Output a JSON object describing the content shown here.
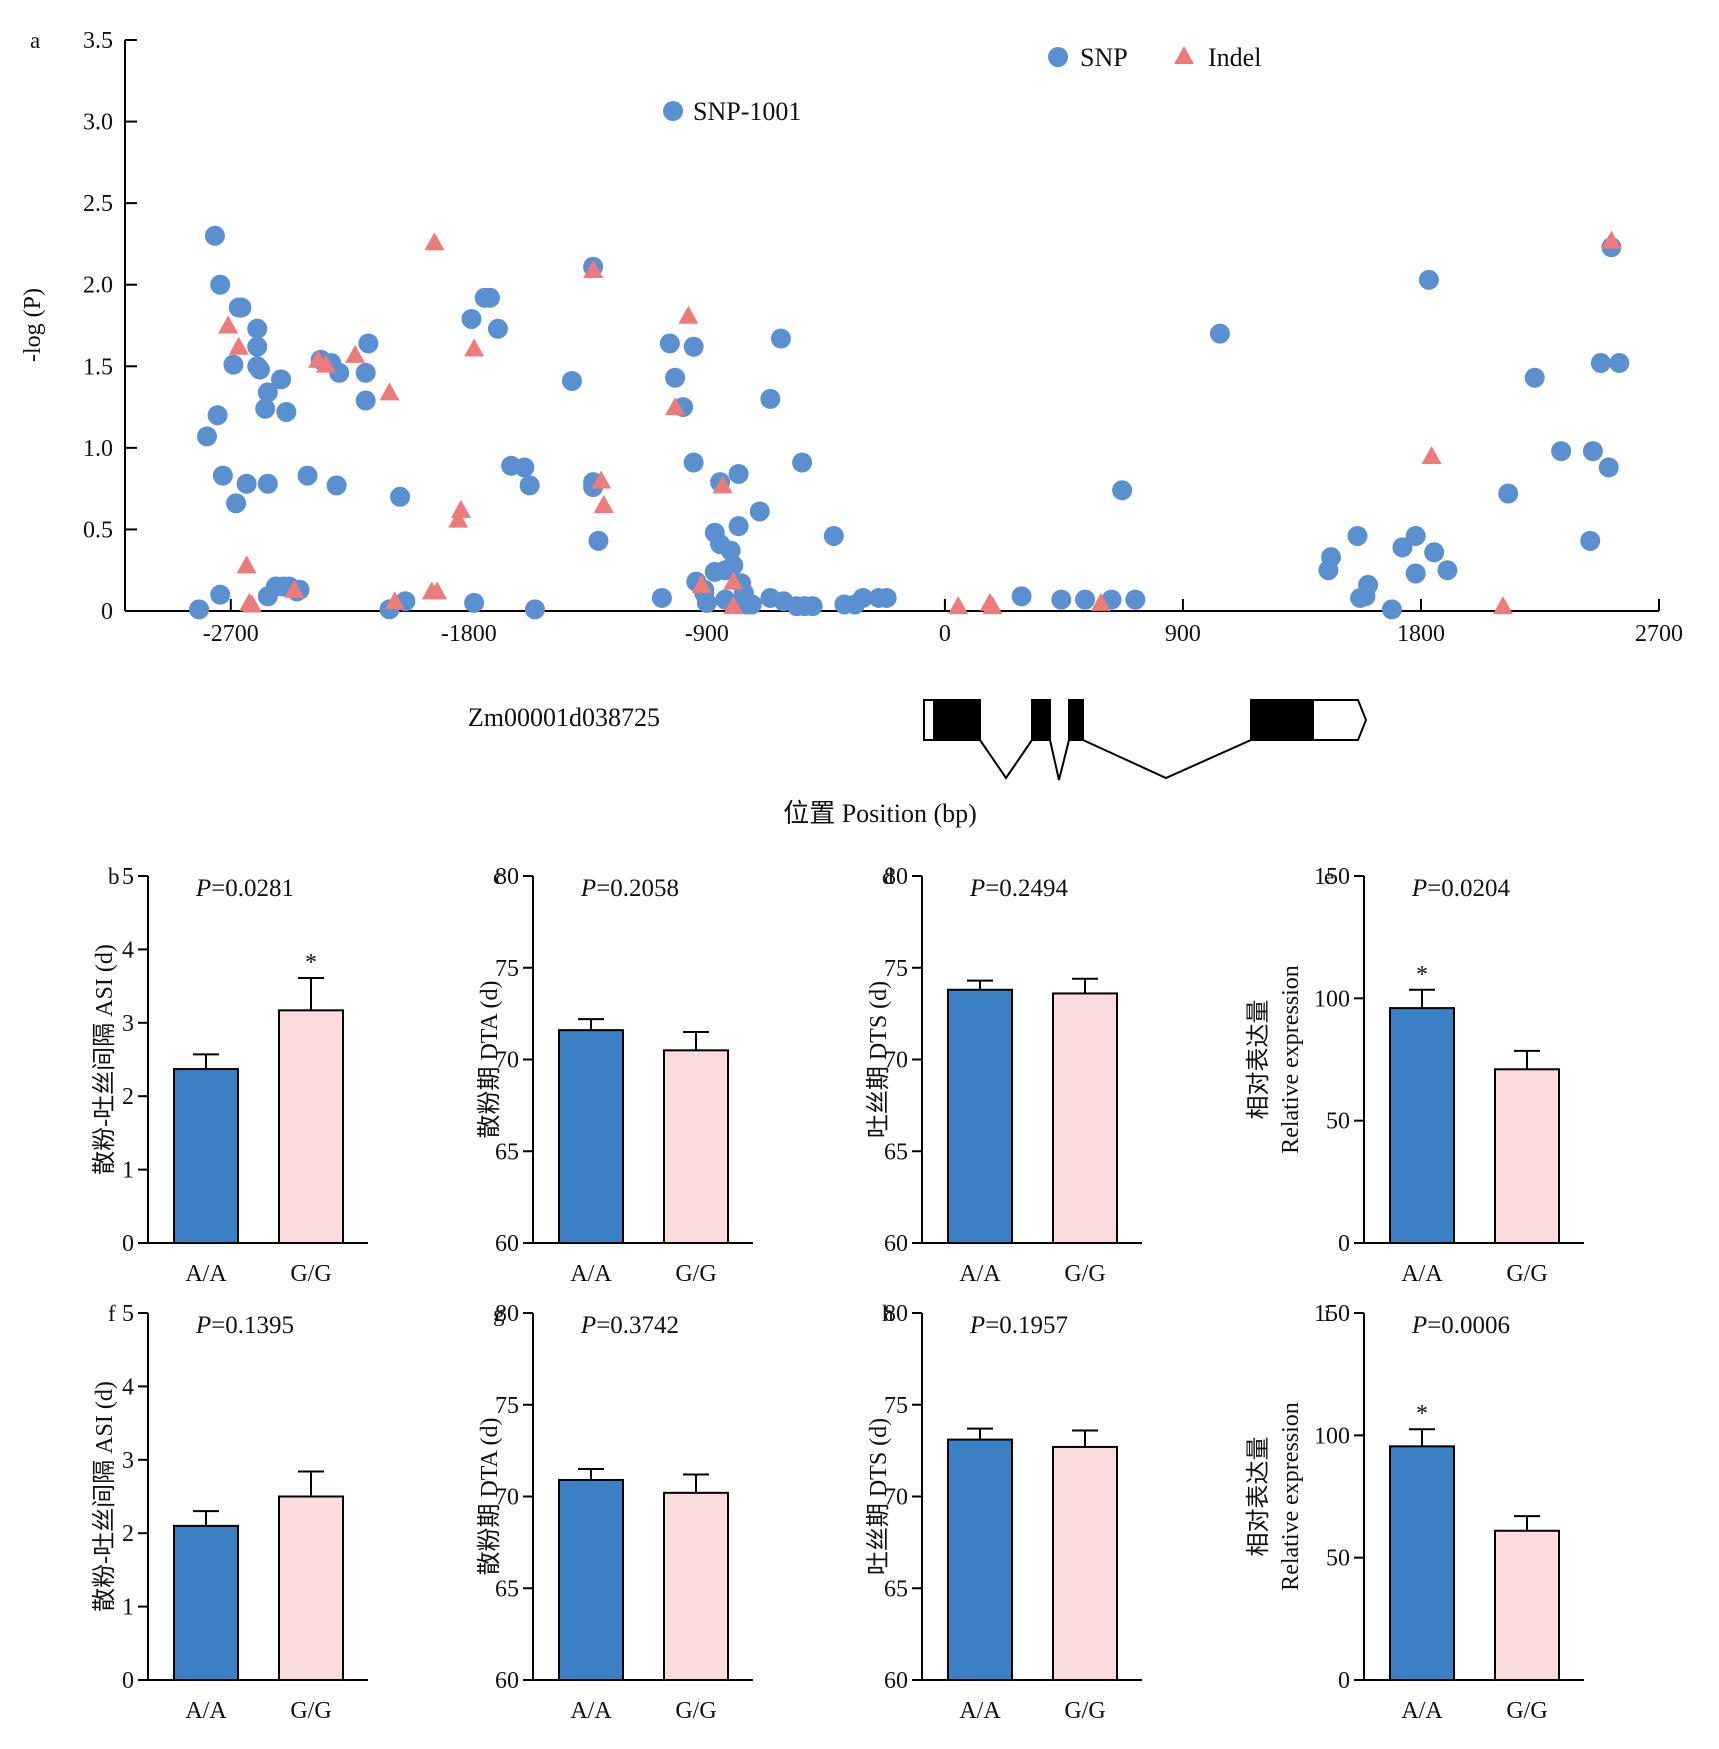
{
  "colors": {
    "snp": "#5a90cf",
    "indel": "#ee7b7b",
    "aa_bar": "#3a80c4",
    "gg_bar": "#fadcdc"
  },
  "chart_data": [
    {
      "panel": "a",
      "type": "scatter",
      "xlabel": "位置 Position (bp)",
      "ylabel": "-log (P)",
      "xlim": [
        -3100,
        2700
      ],
      "ylim": [
        0,
        3.5
      ],
      "xticks": [
        "-2700",
        "-1800",
        "-900",
        "0",
        "900",
        "1800",
        "2700"
      ],
      "yticks": [
        "0",
        "0.5",
        "1.0",
        "1.5",
        "2.0",
        "2.5",
        "3.0",
        "3.5"
      ],
      "legend_position": "top-right",
      "gene_label": "Zm00001d038725",
      "highlight": {
        "label": "SNP-1001",
        "series": "SNP"
      },
      "series": [
        {
          "name": "SNP",
          "marker": "circle",
          "points": [
            [
              -2820,
              0.01
            ],
            [
              -2790,
              1.07
            ],
            [
              -2760,
              2.3
            ],
            [
              -2750,
              1.2
            ],
            [
              -2740,
              2.0
            ],
            [
              -2740,
              0.1
            ],
            [
              -2730,
              0.83
            ],
            [
              -2690,
              1.51
            ],
            [
              -2680,
              0.66
            ],
            [
              -2670,
              1.86
            ],
            [
              -2660,
              1.86
            ],
            [
              -2640,
              0.78
            ],
            [
              -2600,
              1.73
            ],
            [
              -2600,
              1.62
            ],
            [
              -2600,
              1.5
            ],
            [
              -2590,
              1.48
            ],
            [
              -2570,
              1.24
            ],
            [
              -2560,
              1.34
            ],
            [
              -2560,
              0.78
            ],
            [
              -2560,
              0.09
            ],
            [
              -2530,
              0.15
            ],
            [
              -2510,
              1.42
            ],
            [
              -2500,
              0.15
            ],
            [
              -2490,
              1.22
            ],
            [
              -2480,
              0.15
            ],
            [
              -2450,
              0.12
            ],
            [
              -2440,
              0.13
            ],
            [
              -2410,
              0.83
            ],
            [
              -2360,
              1.54
            ],
            [
              -2320,
              1.52
            ],
            [
              -2300,
              0.77
            ],
            [
              -2290,
              1.46
            ],
            [
              -2190,
              1.29
            ],
            [
              -2190,
              1.46
            ],
            [
              -2180,
              1.64
            ],
            [
              -2100,
              0.01
            ],
            [
              -2060,
              0.7
            ],
            [
              -2040,
              0.06
            ],
            [
              -1790,
              1.79
            ],
            [
              -1780,
              0.05
            ],
            [
              -1740,
              1.92
            ],
            [
              -1720,
              1.92
            ],
            [
              -1690,
              1.73
            ],
            [
              -1640,
              0.89
            ],
            [
              -1590,
              0.88
            ],
            [
              -1570,
              0.77
            ],
            [
              -1550,
              0.01
            ],
            [
              -1410,
              1.41
            ],
            [
              -1330,
              2.11
            ],
            [
              -1330,
              0.79
            ],
            [
              -1330,
              0.76
            ],
            [
              -1310,
              0.43
            ],
            [
              -1070,
              0.08
            ],
            [
              -1040,
              1.64
            ],
            [
              -1020,
              1.43
            ],
            [
              -990,
              1.25
            ],
            [
              -950,
              1.62
            ],
            [
              -950,
              0.91
            ],
            [
              -940,
              0.18
            ],
            [
              -910,
              0.13
            ],
            [
              -910,
              0.11
            ],
            [
              -900,
              0.05
            ],
            [
              -870,
              0.48
            ],
            [
              -870,
              0.24
            ],
            [
              -850,
              0.79
            ],
            [
              -850,
              0.41
            ],
            [
              -830,
              0.25
            ],
            [
              -830,
              0.07
            ],
            [
              -810,
              0.37
            ],
            [
              -800,
              0.28
            ],
            [
              -780,
              0.84
            ],
            [
              -780,
              0.52
            ],
            [
              -770,
              0.17
            ],
            [
              -760,
              0.11
            ],
            [
              -760,
              0.06
            ],
            [
              -750,
              0.04
            ],
            [
              -730,
              0.04
            ],
            [
              -700,
              0.61
            ],
            [
              -660,
              1.3
            ],
            [
              -660,
              0.08
            ],
            [
              -620,
              1.67
            ],
            [
              -610,
              0.06
            ],
            [
              -560,
              0.03
            ],
            [
              -540,
              0.91
            ],
            [
              -530,
              0.03
            ],
            [
              -500,
              0.03
            ],
            [
              -420,
              0.46
            ],
            [
              -380,
              0.04
            ],
            [
              -340,
              0.04
            ],
            [
              -310,
              0.08
            ],
            [
              -250,
              0.08
            ],
            [
              -220,
              0.08
            ],
            [
              290,
              0.09
            ],
            [
              440,
              0.07
            ],
            [
              530,
              0.07
            ],
            [
              630,
              0.07
            ],
            [
              670,
              0.74
            ],
            [
              720,
              0.07
            ],
            [
              1040,
              1.7
            ],
            [
              1450,
              0.25
            ],
            [
              1460,
              0.33
            ],
            [
              1560,
              0.46
            ],
            [
              1570,
              0.08
            ],
            [
              1590,
              0.09
            ],
            [
              1600,
              0.16
            ],
            [
              1690,
              0.01
            ],
            [
              1730,
              0.39
            ],
            [
              1780,
              0.23
            ],
            [
              1780,
              0.46
            ],
            [
              1830,
              2.03
            ],
            [
              1850,
              0.36
            ],
            [
              1900,
              0.25
            ],
            [
              2130,
              0.72
            ],
            [
              2230,
              1.43
            ],
            [
              2330,
              0.98
            ],
            [
              2440,
              0.43
            ],
            [
              2450,
              0.98
            ],
            [
              2480,
              1.52
            ],
            [
              2510,
              0.88
            ],
            [
              2520,
              2.23
            ],
            [
              2550,
              1.52
            ]
          ]
        },
        {
          "name": "Indel",
          "marker": "triangle",
          "points": [
            [
              -2710,
              1.75
            ],
            [
              -2670,
              1.62
            ],
            [
              -2640,
              0.28
            ],
            [
              -2630,
              0.05
            ],
            [
              -2620,
              0.04
            ],
            [
              -2460,
              0.13
            ],
            [
              -2370,
              1.54
            ],
            [
              -2340,
              1.51
            ],
            [
              -2230,
              1.57
            ],
            [
              -2100,
              1.34
            ],
            [
              -2080,
              0.06
            ],
            [
              -1940,
              0.12
            ],
            [
              -1920,
              0.12
            ],
            [
              -1930,
              2.26
            ],
            [
              -1840,
              0.56
            ],
            [
              -1830,
              0.62
            ],
            [
              -1780,
              1.61
            ],
            [
              -1330,
              2.09
            ],
            [
              -1300,
              0.8
            ],
            [
              -1290,
              0.65
            ],
            [
              -1020,
              1.25
            ],
            [
              -970,
              1.81
            ],
            [
              -920,
              0.16
            ],
            [
              -840,
              0.77
            ],
            [
              -800,
              0.18
            ],
            [
              -800,
              0.03
            ],
            [
              50,
              0.03
            ],
            [
              170,
              0.05
            ],
            [
              180,
              0.03
            ],
            [
              590,
              0.05
            ],
            [
              1840,
              0.95
            ],
            [
              2110,
              0.03
            ],
            [
              2520,
              2.27
            ]
          ]
        }
      ]
    },
    {
      "panel": "b",
      "type": "bar",
      "ylabel": "散粉-吐丝间隔 ASI (d)",
      "p_text": "=0.0281",
      "ylim": [
        0,
        5
      ],
      "yticks": [
        "0",
        "1",
        "2",
        "3",
        "4",
        "5"
      ],
      "categories": [
        "A/A",
        "G/G"
      ],
      "values": [
        2.37,
        3.17
      ],
      "errors": [
        0.2,
        0.44
      ],
      "sig": [
        "",
        "*"
      ]
    },
    {
      "panel": "c",
      "type": "bar",
      "ylabel": "散粉期 DTA (d)",
      "p_text": "=0.2058",
      "ylim": [
        60,
        80
      ],
      "yticks": [
        "60",
        "65",
        "70",
        "75",
        "80"
      ],
      "categories": [
        "A/A",
        "G/G"
      ],
      "values": [
        71.6,
        70.5
      ],
      "errors": [
        0.6,
        1.0
      ],
      "sig": [
        "",
        ""
      ]
    },
    {
      "panel": "d",
      "type": "bar",
      "ylabel": "吐丝期 DTS (d)",
      "p_text": "=0.2494",
      "ylim": [
        60,
        80
      ],
      "yticks": [
        "60",
        "65",
        "70",
        "75",
        "80"
      ],
      "categories": [
        "A/A",
        "G/G"
      ],
      "values": [
        73.8,
        73.6
      ],
      "errors": [
        0.5,
        0.8
      ],
      "sig": [
        "",
        ""
      ]
    },
    {
      "panel": "e",
      "type": "bar",
      "ylabel": "相对表达量",
      "ylabel2": "Relative expression",
      "p_text": "=0.0204",
      "ylim": [
        0,
        150
      ],
      "yticks": [
        "0",
        "50",
        "100",
        "150"
      ],
      "categories": [
        "A/A",
        "G/G"
      ],
      "values": [
        96,
        71
      ],
      "errors": [
        7.5,
        7.5
      ],
      "sig": [
        "*",
        ""
      ]
    },
    {
      "panel": "f",
      "type": "bar",
      "ylabel": "散粉-吐丝间隔 ASI (d)",
      "p_text": "=0.1395",
      "ylim": [
        0,
        5
      ],
      "yticks": [
        "0",
        "1",
        "2",
        "3",
        "4",
        "5"
      ],
      "categories": [
        "A/A",
        "G/G"
      ],
      "values": [
        2.1,
        2.5
      ],
      "errors": [
        0.2,
        0.34
      ],
      "sig": [
        "",
        ""
      ]
    },
    {
      "panel": "g",
      "type": "bar",
      "ylabel": "散粉期 DTA (d)",
      "p_text": "=0.3742",
      "ylim": [
        60,
        80
      ],
      "yticks": [
        "60",
        "65",
        "70",
        "75",
        "80"
      ],
      "categories": [
        "A/A",
        "G/G"
      ],
      "values": [
        70.9,
        70.2
      ],
      "errors": [
        0.6,
        1.0
      ],
      "sig": [
        "",
        ""
      ]
    },
    {
      "panel": "h",
      "type": "bar",
      "ylabel": "吐丝期 DTS (d)",
      "p_text": "=0.1957",
      "ylim": [
        60,
        80
      ],
      "yticks": [
        "60",
        "65",
        "70",
        "75",
        "80"
      ],
      "categories": [
        "A/A",
        "G/G"
      ],
      "values": [
        73.1,
        72.7
      ],
      "errors": [
        0.6,
        0.9
      ],
      "sig": [
        "",
        ""
      ]
    },
    {
      "panel": "i",
      "type": "bar",
      "ylabel": "相对表达量",
      "ylabel2": "Relative expression",
      "p_text": "=0.0006",
      "ylim": [
        0,
        150
      ],
      "yticks": [
        "0",
        "50",
        "100",
        "150"
      ],
      "categories": [
        "A/A",
        "G/G"
      ],
      "values": [
        95.5,
        61
      ],
      "errors": [
        7,
        6
      ],
      "sig": [
        "*",
        ""
      ]
    }
  ]
}
